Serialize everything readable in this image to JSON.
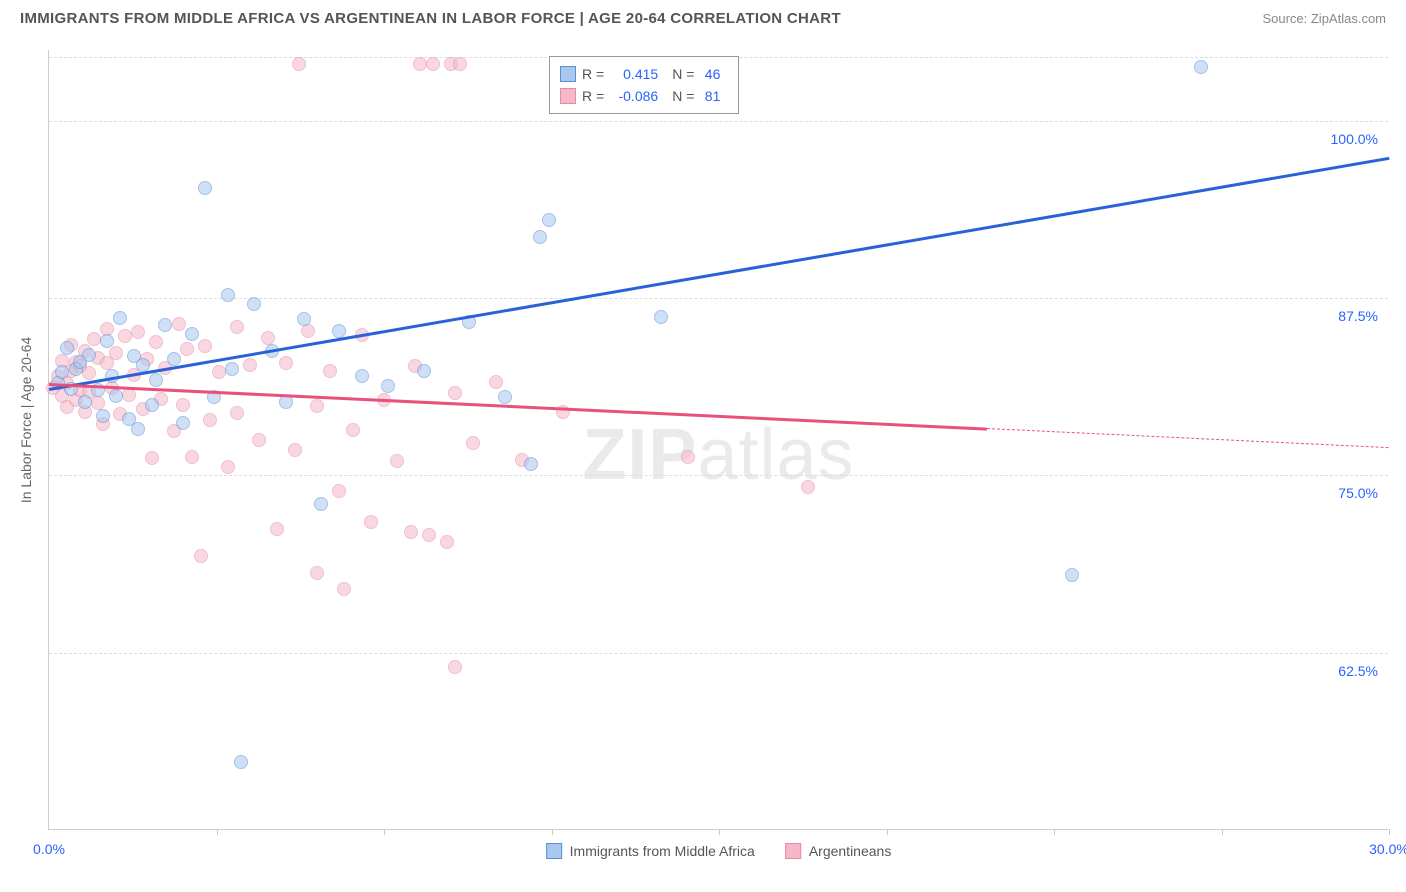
{
  "title": "IMMIGRANTS FROM MIDDLE AFRICA VS ARGENTINEAN IN LABOR FORCE | AGE 20-64 CORRELATION CHART",
  "source": "Source: ZipAtlas.com",
  "ylabel": "In Labor Force | Age 20-64",
  "watermark_a": "ZIP",
  "watermark_b": "atlas",
  "chart": {
    "type": "scatter",
    "xlim": [
      0,
      30
    ],
    "ylim": [
      50,
      105
    ],
    "xtick_labels": [
      {
        "x": 0,
        "label": "0.0%"
      },
      {
        "x": 30,
        "label": "30.0%"
      }
    ],
    "xtick_marks": [
      3.75,
      7.5,
      11.25,
      15,
      18.75,
      22.5,
      26.25,
      30
    ],
    "ytick_labels": [
      {
        "y": 62.5,
        "label": "62.5%"
      },
      {
        "y": 75.0,
        "label": "75.0%"
      },
      {
        "y": 87.5,
        "label": "87.5%"
      },
      {
        "y": 100.0,
        "label": "100.0%"
      }
    ],
    "gridlines_y": [
      62.5,
      75.0,
      87.5,
      100.0,
      104.5
    ],
    "background_color": "#ffffff",
    "grid_color": "#dddddd",
    "axis_color": "#cccccc",
    "point_radius": 7,
    "point_opacity": 0.55
  },
  "series": [
    {
      "name": "Immigrants from Middle Africa",
      "color_fill": "#a8c8f0",
      "color_stroke": "#5a8fd8",
      "line_color": "#2962d8",
      "R": "0.415",
      "N": "46",
      "trend": {
        "x1": 0,
        "y1": 81.2,
        "x2": 30,
        "y2": 97.5,
        "dash_from_x": null
      },
      "points": [
        [
          0.2,
          81.5
        ],
        [
          0.3,
          82.3
        ],
        [
          0.4,
          84.0
        ],
        [
          0.5,
          81.1
        ],
        [
          0.6,
          82.5
        ],
        [
          0.7,
          83.0
        ],
        [
          0.8,
          80.2
        ],
        [
          0.9,
          83.5
        ],
        [
          1.1,
          81.0
        ],
        [
          1.2,
          79.2
        ],
        [
          1.3,
          84.5
        ],
        [
          1.4,
          82.0
        ],
        [
          1.5,
          80.6
        ],
        [
          1.6,
          86.1
        ],
        [
          1.8,
          79.0
        ],
        [
          1.9,
          83.4
        ],
        [
          2.0,
          78.3
        ],
        [
          2.1,
          82.8
        ],
        [
          2.3,
          80.0
        ],
        [
          2.4,
          81.7
        ],
        [
          2.6,
          85.6
        ],
        [
          2.8,
          83.2
        ],
        [
          3.0,
          78.7
        ],
        [
          3.2,
          85.0
        ],
        [
          3.5,
          95.3
        ],
        [
          3.7,
          80.5
        ],
        [
          4.0,
          87.7
        ],
        [
          4.1,
          82.5
        ],
        [
          4.3,
          54.8
        ],
        [
          4.6,
          87.1
        ],
        [
          5.0,
          83.8
        ],
        [
          5.3,
          80.2
        ],
        [
          5.7,
          86.0
        ],
        [
          6.1,
          73.0
        ],
        [
          6.5,
          85.2
        ],
        [
          7.0,
          82.0
        ],
        [
          7.6,
          81.3
        ],
        [
          8.4,
          82.4
        ],
        [
          9.4,
          85.8
        ],
        [
          10.2,
          80.5
        ],
        [
          10.8,
          75.8
        ],
        [
          11.0,
          91.8
        ],
        [
          11.2,
          93.0
        ],
        [
          13.7,
          86.2
        ],
        [
          22.9,
          68.0
        ],
        [
          25.8,
          103.8
        ]
      ]
    },
    {
      "name": "Argentineans",
      "color_fill": "#f5b8c8",
      "color_stroke": "#e88aa5",
      "line_color": "#e8527a",
      "R": "-0.086",
      "N": "81",
      "trend": {
        "x1": 0,
        "y1": 81.5,
        "x2": 30,
        "y2": 77.0,
        "dash_from_x": 21
      },
      "points": [
        [
          0.1,
          81.2
        ],
        [
          0.2,
          82.0
        ],
        [
          0.3,
          80.6
        ],
        [
          0.3,
          83.1
        ],
        [
          0.4,
          81.5
        ],
        [
          0.4,
          79.8
        ],
        [
          0.5,
          82.4
        ],
        [
          0.5,
          84.2
        ],
        [
          0.6,
          80.3
        ],
        [
          0.6,
          83.0
        ],
        [
          0.7,
          81.0
        ],
        [
          0.7,
          82.7
        ],
        [
          0.8,
          79.5
        ],
        [
          0.8,
          83.8
        ],
        [
          0.9,
          80.9
        ],
        [
          0.9,
          82.2
        ],
        [
          1.0,
          84.6
        ],
        [
          1.1,
          80.1
        ],
        [
          1.1,
          83.3
        ],
        [
          1.2,
          78.6
        ],
        [
          1.3,
          82.9
        ],
        [
          1.3,
          85.3
        ],
        [
          1.4,
          81.2
        ],
        [
          1.5,
          83.6
        ],
        [
          1.6,
          79.3
        ],
        [
          1.7,
          84.8
        ],
        [
          1.8,
          80.7
        ],
        [
          1.9,
          82.1
        ],
        [
          2.0,
          85.1
        ],
        [
          2.1,
          79.7
        ],
        [
          2.2,
          83.2
        ],
        [
          2.3,
          76.2
        ],
        [
          2.4,
          84.4
        ],
        [
          2.5,
          80.4
        ],
        [
          2.6,
          82.6
        ],
        [
          2.8,
          78.1
        ],
        [
          2.9,
          85.7
        ],
        [
          3.0,
          80.0
        ],
        [
          3.1,
          83.9
        ],
        [
          3.2,
          76.3
        ],
        [
          3.4,
          69.3
        ],
        [
          3.5,
          84.1
        ],
        [
          3.6,
          78.9
        ],
        [
          3.8,
          82.3
        ],
        [
          4.0,
          75.6
        ],
        [
          4.2,
          85.5
        ],
        [
          4.2,
          79.4
        ],
        [
          4.5,
          82.8
        ],
        [
          4.7,
          77.5
        ],
        [
          4.9,
          84.7
        ],
        [
          5.1,
          71.2
        ],
        [
          5.3,
          82.9
        ],
        [
          5.5,
          76.8
        ],
        [
          5.6,
          104.0
        ],
        [
          5.8,
          85.2
        ],
        [
          6.0,
          68.1
        ],
        [
          6.0,
          79.9
        ],
        [
          6.3,
          82.4
        ],
        [
          6.5,
          73.9
        ],
        [
          6.6,
          67.0
        ],
        [
          6.8,
          78.2
        ],
        [
          7.0,
          84.9
        ],
        [
          7.2,
          71.7
        ],
        [
          7.5,
          80.3
        ],
        [
          7.8,
          76.0
        ],
        [
          8.1,
          71.0
        ],
        [
          8.2,
          82.7
        ],
        [
          8.3,
          104.0
        ],
        [
          8.5,
          70.8
        ],
        [
          8.6,
          104.0
        ],
        [
          8.9,
          70.3
        ],
        [
          9.0,
          104.0
        ],
        [
          9.1,
          80.8
        ],
        [
          9.1,
          61.5
        ],
        [
          9.2,
          104.0
        ],
        [
          9.5,
          77.3
        ],
        [
          10.0,
          81.6
        ],
        [
          10.6,
          76.1
        ],
        [
          11.5,
          79.5
        ],
        [
          14.3,
          76.3
        ],
        [
          17.0,
          74.2
        ]
      ]
    }
  ],
  "legend_bottom": [
    {
      "label": "Immigrants from Middle Africa",
      "fill": "#a8c8f0",
      "stroke": "#5a8fd8"
    },
    {
      "label": "Argentineans",
      "fill": "#f5b8c8",
      "stroke": "#e88aa5"
    }
  ]
}
